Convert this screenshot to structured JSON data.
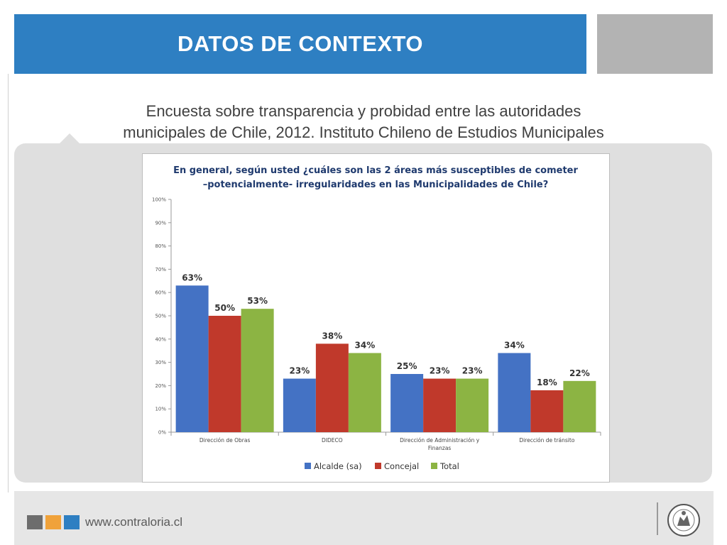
{
  "header": {
    "title": "DATOS DE CONTEXTO"
  },
  "subtitle": {
    "line1": "Encuesta sobre transparencia y probidad entre las autoridades",
    "line2": "municipales de Chile, 2012. Instituto Chileno de Estudios Municipales"
  },
  "footer": {
    "url": "www.contraloria.cl",
    "seal_text": "CONTRALORÍA GENERAL DE LA REPÚBLICA"
  },
  "colors": {
    "accent": "#2e7fc2",
    "series_blue": "#4472c4",
    "series_red": "#c0392b",
    "series_green": "#8cb443"
  },
  "chart_data": {
    "type": "bar",
    "title_lines": [
      "En general, según usted ¿cuáles son las 2 áreas más susceptibles de cometer",
      "–potencialmente- irregularidades en las Municipalidades de Chile?"
    ],
    "categories": [
      [
        "Dirección de Obras"
      ],
      [
        "DIDECO"
      ],
      [
        "Dirección de Administración y",
        "Finanzas"
      ],
      [
        "Dirección de tránsito"
      ]
    ],
    "series": [
      {
        "name": "Alcalde (sa)",
        "values": [
          63,
          23,
          25,
          34
        ],
        "labels": [
          "63%",
          "23%",
          "25%",
          "34%"
        ],
        "color": "#4472c4"
      },
      {
        "name": "Concejal",
        "values": [
          50,
          38,
          23,
          18
        ],
        "labels": [
          "50%",
          "38%",
          "23%",
          "18%"
        ],
        "color": "#c0392b"
      },
      {
        "name": "Total",
        "values": [
          53,
          34,
          23,
          22
        ],
        "labels": [
          "53%",
          "34%",
          "23%",
          "22%"
        ],
        "color": "#8cb443"
      }
    ],
    "yticks": [
      "0%",
      "10%",
      "20%",
      "30%",
      "40%",
      "50%",
      "60%",
      "70%",
      "80%",
      "90%",
      "100%"
    ],
    "ylim": [
      0,
      100
    ],
    "grid": false,
    "legend_position": "bottom"
  }
}
